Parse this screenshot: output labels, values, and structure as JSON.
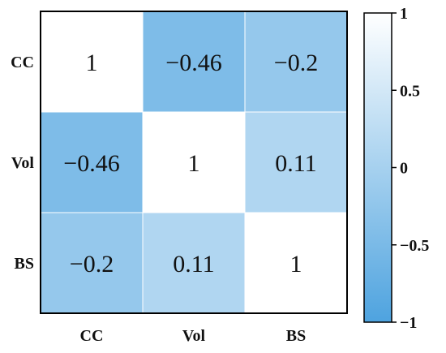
{
  "chart_data": {
    "type": "heatmap",
    "title": "",
    "row_labels": [
      "CC",
      "Vol",
      "BS"
    ],
    "col_labels": [
      "CC",
      "Vol",
      "BS"
    ],
    "values": [
      [
        1,
        -0.46,
        -0.2
      ],
      [
        -0.46,
        1,
        0.11
      ],
      [
        -0.2,
        0.11,
        1
      ]
    ],
    "value_labels": [
      [
        "1",
        "−0.46",
        "−0.2"
      ],
      [
        "−0.46",
        "1",
        "0.11"
      ],
      [
        "−0.2",
        "0.11",
        "1"
      ]
    ],
    "colorbar": {
      "range": [
        -1,
        1
      ],
      "ticks": [
        1,
        0.5,
        0,
        -0.5,
        -1
      ],
      "tick_labels": [
        "1",
        "0.5",
        "0",
        "−0.5",
        "−1"
      ],
      "color_low": "#4ea3df",
      "color_high": "#ffffff"
    }
  }
}
